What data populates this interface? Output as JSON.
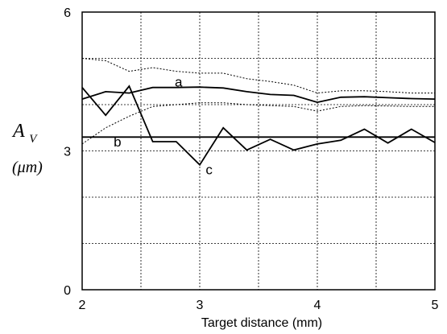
{
  "chart_data": {
    "type": "line",
    "title": "",
    "xlabel": "Target distance (mm)",
    "ylabel": {
      "main": "A",
      "sub": "V",
      "unit": "(μm)"
    },
    "xlim": [
      2,
      5
    ],
    "ylim": [
      0,
      6
    ],
    "x_ticks": [
      "2",
      "3",
      "4",
      "5"
    ],
    "y_ticks": [
      "0",
      "3",
      "6"
    ],
    "grid": "dotted",
    "x_grid": [
      2.5,
      3,
      3.5,
      4,
      4.5
    ],
    "y_grid": [
      1,
      2,
      3,
      4,
      5
    ],
    "series": [
      {
        "name": "a",
        "style": "solid",
        "x": [
          2,
          2.2,
          2.4,
          2.6,
          2.8,
          3,
          3.2,
          3.4,
          3.6,
          3.8,
          4,
          4.2,
          4.4,
          4.6,
          4.8,
          5
        ],
        "y": [
          4.12,
          4.28,
          4.25,
          4.37,
          4.37,
          4.38,
          4.36,
          4.28,
          4.22,
          4.2,
          4.05,
          4.16,
          4.17,
          4.15,
          4.13,
          4.12
        ]
      },
      {
        "name": "",
        "style": "dotted",
        "x": [
          2,
          2.2,
          2.4,
          2.6,
          2.8,
          3,
          3.2,
          3.4,
          3.6,
          3.8,
          4,
          4.2,
          4.4,
          4.6,
          4.8,
          5
        ],
        "y": [
          5.0,
          4.95,
          4.72,
          4.8,
          4.72,
          4.68,
          4.68,
          4.56,
          4.5,
          4.42,
          4.25,
          4.3,
          4.3,
          4.28,
          4.25,
          4.25
        ]
      },
      {
        "name": "",
        "style": "dotted",
        "x": [
          2,
          2.2,
          2.4,
          2.6,
          2.8,
          3,
          3.2,
          3.4,
          3.6,
          3.8,
          4,
          4.2,
          4.4,
          4.6,
          4.8,
          5
        ],
        "y": [
          3.15,
          3.5,
          3.75,
          3.96,
          4.0,
          4.04,
          4.04,
          4.0,
          3.98,
          3.96,
          3.86,
          3.96,
          3.98,
          3.97,
          3.96,
          3.96
        ]
      },
      {
        "name": "b",
        "style": "solid",
        "x": [
          2,
          5
        ],
        "y": [
          3.3,
          3.3
        ]
      },
      {
        "name": "c",
        "style": "solid",
        "x": [
          2,
          2.2,
          2.4,
          2.6,
          2.8,
          3,
          3.2,
          3.4,
          3.6,
          3.8,
          4,
          4.2,
          4.4,
          4.6,
          4.8,
          5
        ],
        "y": [
          4.37,
          3.77,
          4.4,
          3.2,
          3.2,
          2.7,
          3.5,
          3.02,
          3.25,
          3.02,
          3.15,
          3.23,
          3.47,
          3.17,
          3.47,
          3.18
        ]
      }
    ],
    "annotations": [
      {
        "text": "a",
        "x": 2.82,
        "y": 4.5
      },
      {
        "text": "b",
        "x": 2.3,
        "y": 3.2
      },
      {
        "text": "c",
        "x": 3.08,
        "y": 2.6
      }
    ]
  }
}
